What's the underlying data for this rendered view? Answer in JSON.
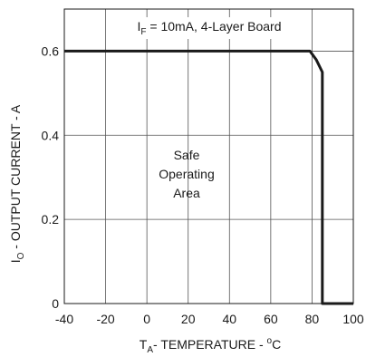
{
  "chart_data": {
    "type": "line",
    "title": "",
    "xlabel": {
      "main": "T",
      "sub": "A",
      "rest": "- TEMPERATURE - ",
      "sup": "o",
      "unit": "C"
    },
    "ylabel": {
      "main": "I",
      "sub": "O",
      "rest": " - OUTPUT CURRENT - A"
    },
    "xlim": [
      -40,
      100
    ],
    "ylim": [
      0,
      0.7
    ],
    "xticks": [
      -40,
      -20,
      0,
      20,
      40,
      60,
      80,
      100
    ],
    "yticks": [
      0,
      0.2,
      0.4,
      0.6
    ],
    "xtick_labels": [
      "-40",
      "-20",
      "0",
      "20",
      "40",
      "60",
      "80",
      "100"
    ],
    "ytick_labels": [
      "0",
      "0.2",
      "0.4",
      "0.6"
    ],
    "grid": true,
    "series": [
      {
        "x": [
          -40,
          79,
          82,
          85,
          85,
          100
        ],
        "y": [
          0.6,
          0.6,
          0.58,
          0.55,
          0,
          0
        ]
      }
    ],
    "annotations": {
      "condition": {
        "main": "I",
        "sub": "F",
        "rest": " = 10mA, 4-Layer Board"
      },
      "region": [
        "Safe",
        "Operating",
        "Area"
      ]
    }
  }
}
